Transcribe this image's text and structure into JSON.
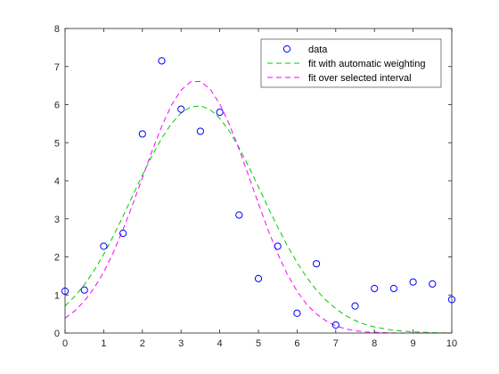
{
  "chart_data": {
    "type": "scatter",
    "title": "",
    "xlabel": "",
    "ylabel": "",
    "xlim": [
      0,
      10
    ],
    "ylim": [
      0,
      8
    ],
    "grid": false,
    "legend_placement": "top-right",
    "x_ticks": [
      "0",
      "1",
      "2",
      "3",
      "4",
      "5",
      "6",
      "7",
      "8",
      "9",
      "10"
    ],
    "y_ticks": [
      "0",
      "1",
      "2",
      "3",
      "4",
      "5",
      "6",
      "7",
      "8"
    ],
    "series": [
      {
        "name": "data",
        "kind": "markers",
        "marker": "circle",
        "color": "#0000ff",
        "x": [
          0,
          0.5,
          1,
          1.5,
          2,
          2.5,
          3,
          3.5,
          4,
          4.5,
          5,
          5.5,
          6,
          6.5,
          7,
          7.5,
          8,
          8.5,
          9,
          9.5,
          10
        ],
        "y": [
          1.1,
          1.13,
          2.28,
          2.62,
          5.23,
          7.15,
          5.88,
          5.3,
          5.8,
          3.1,
          1.43,
          2.28,
          0.52,
          1.82,
          0.21,
          0.71,
          1.17,
          1.17,
          1.34,
          1.29,
          0.88
        ]
      },
      {
        "name": "fit with automatic weighting",
        "kind": "dashed-line",
        "color": "#00cc00",
        "x": [
          0,
          0.25,
          0.5,
          0.75,
          1,
          1.25,
          1.5,
          1.75,
          2,
          2.25,
          2.5,
          2.75,
          3,
          3.25,
          3.5,
          3.75,
          4,
          4.25,
          4.5,
          4.75,
          5,
          5.25,
          5.5,
          5.75,
          6,
          6.25,
          6.5,
          6.75,
          7,
          7.25,
          7.5,
          7.75,
          8,
          8.5,
          9,
          9.5,
          10
        ],
        "y": [
          0.71,
          0.96,
          1.27,
          1.64,
          2.07,
          2.55,
          3.07,
          3.61,
          4.15,
          4.66,
          5.12,
          5.5,
          5.78,
          5.94,
          5.97,
          5.87,
          5.64,
          5.3,
          4.87,
          4.37,
          3.84,
          3.3,
          2.78,
          2.29,
          1.85,
          1.46,
          1.13,
          0.86,
          0.64,
          0.46,
          0.33,
          0.23,
          0.16,
          0.07,
          0.03,
          0.01,
          0.0
        ]
      },
      {
        "name": "fit over selected interval",
        "kind": "dashed-line",
        "color": "#ff00ff",
        "x": [
          0,
          0.25,
          0.5,
          0.75,
          1,
          1.25,
          1.5,
          1.75,
          2,
          2.25,
          2.5,
          2.75,
          3,
          3.25,
          3.5,
          3.75,
          4,
          4.25,
          4.5,
          4.75,
          5,
          5.25,
          5.5,
          5.75,
          6,
          6.25,
          6.5,
          6.75,
          7,
          7.25,
          7.5,
          7.75,
          8,
          8.5,
          9,
          9.5,
          10
        ],
        "y": [
          0.39,
          0.58,
          0.84,
          1.18,
          1.6,
          2.12,
          2.72,
          3.38,
          4.08,
          4.78,
          5.43,
          5.98,
          6.38,
          6.6,
          6.61,
          6.41,
          6.02,
          5.48,
          4.83,
          4.12,
          3.4,
          2.71,
          2.08,
          1.54,
          1.1,
          0.75,
          0.5,
          0.32,
          0.19,
          0.11,
          0.06,
          0.03,
          0.02,
          0.0,
          0.0,
          0.0,
          0.0
        ]
      }
    ]
  }
}
